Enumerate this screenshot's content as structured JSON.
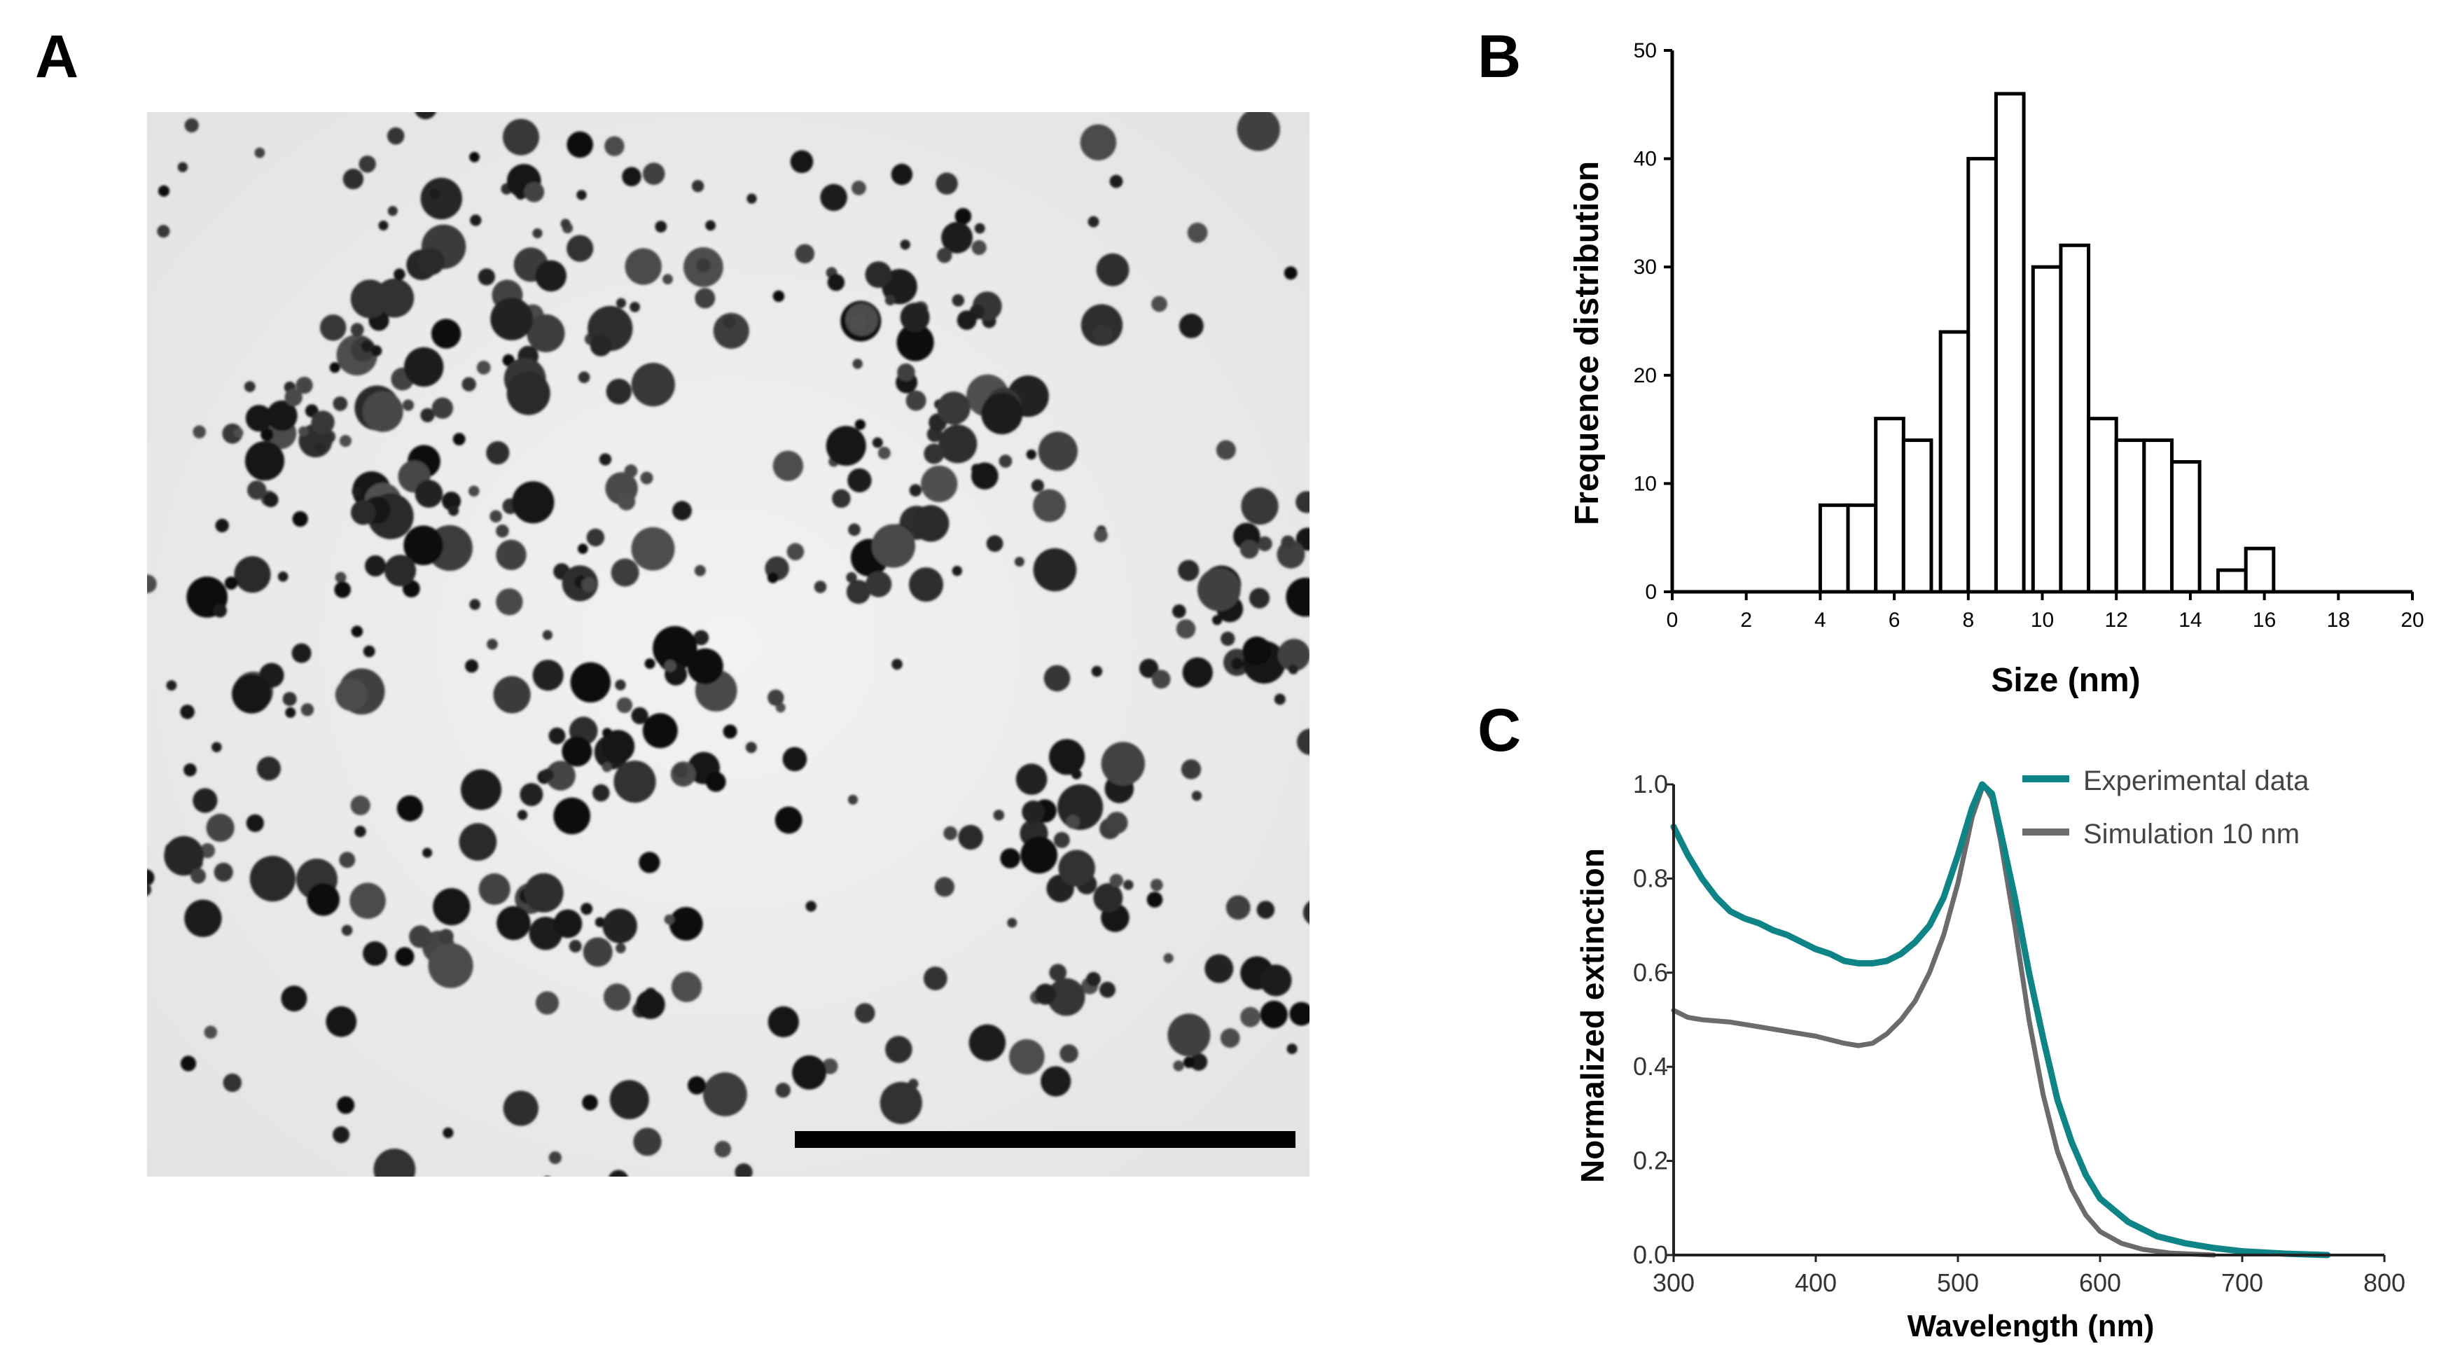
{
  "panels": {
    "a_label": "A",
    "b_label": "B",
    "c_label": "C"
  },
  "chart_data": [
    {
      "type": "bar",
      "panel": "B",
      "xlabel": "Size (nm)",
      "ylabel": "Frequence distribution",
      "xlim": [
        0,
        20
      ],
      "ylim": [
        0,
        50
      ],
      "xticks": [
        0,
        2,
        4,
        6,
        8,
        10,
        12,
        14,
        16,
        18,
        20
      ],
      "yticks": [
        0,
        10,
        20,
        30,
        40,
        50
      ],
      "bin_width": 0.75,
      "bins": [
        {
          "x": 4,
          "value": 8
        },
        {
          "x": 4.75,
          "value": 8
        },
        {
          "x": 5.5,
          "value": 16
        },
        {
          "x": 6.25,
          "value": 14
        },
        {
          "x": 7.25,
          "value": 24
        },
        {
          "x": 8.0,
          "value": 40
        },
        {
          "x": 8.75,
          "value": 46
        },
        {
          "x": 9.75,
          "value": 30
        },
        {
          "x": 10.5,
          "value": 32
        },
        {
          "x": 11.25,
          "value": 16
        },
        {
          "x": 12.0,
          "value": 14
        },
        {
          "x": 12.75,
          "value": 14
        },
        {
          "x": 13.5,
          "value": 12
        },
        {
          "x": 14.75,
          "value": 2
        },
        {
          "x": 15.5,
          "value": 4
        }
      ],
      "bar_fill": "#ffffff",
      "bar_stroke": "#000000",
      "grid": false
    },
    {
      "type": "line",
      "panel": "C",
      "xlabel": "Wavelength (nm)",
      "ylabel": "Normalized extinction",
      "xlim": [
        300,
        800
      ],
      "ylim": [
        0,
        1.0
      ],
      "xticks": [
        300,
        400,
        500,
        600,
        700,
        800
      ],
      "yticks": [
        "0.0",
        "0.2",
        "0.4",
        "0.6",
        "0.8",
        "1.0"
      ],
      "legend_position": "top-right",
      "grid": false,
      "series": [
        {
          "name": "Experimental data",
          "color": "#0f8486",
          "points": [
            [
              300,
              0.91
            ],
            [
              310,
              0.85
            ],
            [
              320,
              0.8
            ],
            [
              330,
              0.76
            ],
            [
              340,
              0.73
            ],
            [
              350,
              0.715
            ],
            [
              360,
              0.705
            ],
            [
              370,
              0.69
            ],
            [
              380,
              0.68
            ],
            [
              390,
              0.665
            ],
            [
              400,
              0.65
            ],
            [
              410,
              0.64
            ],
            [
              420,
              0.625
            ],
            [
              430,
              0.62
            ],
            [
              440,
              0.62
            ],
            [
              450,
              0.625
            ],
            [
              460,
              0.64
            ],
            [
              470,
              0.665
            ],
            [
              480,
              0.7
            ],
            [
              490,
              0.76
            ],
            [
              500,
              0.85
            ],
            [
              510,
              0.95
            ],
            [
              517,
              1.0
            ],
            [
              524,
              0.98
            ],
            [
              530,
              0.9
            ],
            [
              540,
              0.76
            ],
            [
              550,
              0.6
            ],
            [
              560,
              0.46
            ],
            [
              570,
              0.33
            ],
            [
              580,
              0.24
            ],
            [
              590,
              0.17
            ],
            [
              600,
              0.12
            ],
            [
              620,
              0.07
            ],
            [
              640,
              0.04
            ],
            [
              660,
              0.025
            ],
            [
              680,
              0.015
            ],
            [
              700,
              0.008
            ],
            [
              730,
              0.003
            ],
            [
              760,
              0.0
            ]
          ]
        },
        {
          "name": "Simulation 10 nm",
          "color": "#6b6b6b",
          "points": [
            [
              300,
              0.52
            ],
            [
              310,
              0.505
            ],
            [
              320,
              0.5
            ],
            [
              340,
              0.495
            ],
            [
              360,
              0.485
            ],
            [
              380,
              0.475
            ],
            [
              400,
              0.465
            ],
            [
              420,
              0.45
            ],
            [
              430,
              0.445
            ],
            [
              440,
              0.45
            ],
            [
              450,
              0.47
            ],
            [
              460,
              0.5
            ],
            [
              470,
              0.54
            ],
            [
              480,
              0.6
            ],
            [
              490,
              0.68
            ],
            [
              500,
              0.79
            ],
            [
              510,
              0.93
            ],
            [
              518,
              1.0
            ],
            [
              524,
              0.97
            ],
            [
              530,
              0.88
            ],
            [
              540,
              0.7
            ],
            [
              550,
              0.5
            ],
            [
              560,
              0.34
            ],
            [
              570,
              0.22
            ],
            [
              580,
              0.14
            ],
            [
              590,
              0.085
            ],
            [
              600,
              0.05
            ],
            [
              615,
              0.025
            ],
            [
              630,
              0.012
            ],
            [
              650,
              0.004
            ],
            [
              680,
              0.0
            ]
          ]
        }
      ]
    }
  ]
}
